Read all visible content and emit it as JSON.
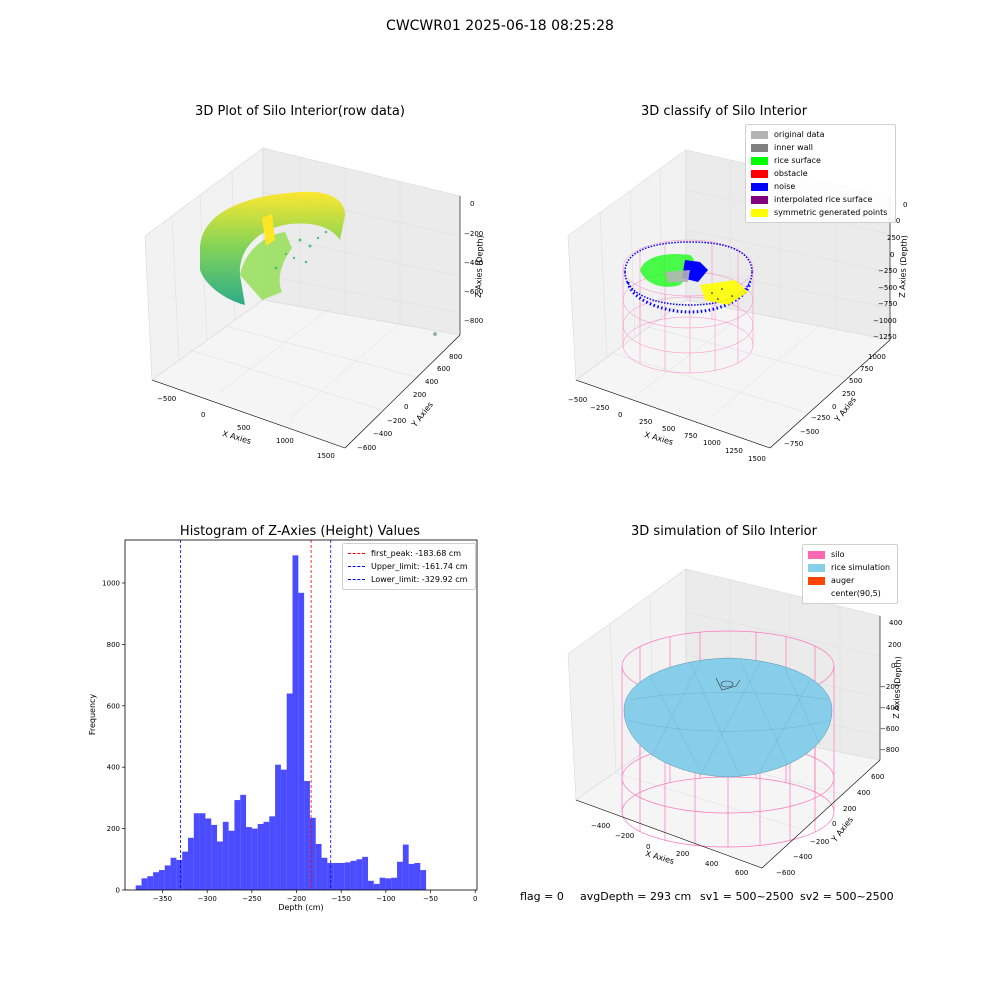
{
  "figure": {
    "suptitle": "CWCWR01 2025-06-18 08:25:28",
    "footer": {
      "flag": "flag = 0",
      "avg": "avgDepth = 293 cm",
      "sv1": "sv1 = 500~2500",
      "sv2": "sv2 = 500~2500"
    }
  },
  "panels": {
    "raw": {
      "title": "3D Plot of Silo Interior(row data)",
      "xlabel": "X Axies",
      "ylabel": "Y Axies",
      "zlabel": "Z Axies (Depth)",
      "xticks": [
        "−500",
        "0",
        "500",
        "1000",
        "1500"
      ],
      "yticks": [
        "−600",
        "−400",
        "−200",
        "0",
        "200",
        "400",
        "600",
        "800"
      ],
      "zticks": [
        "0",
        "−200",
        "−400",
        "−600",
        "−800"
      ],
      "colormap": [
        "#fde725",
        "#5ec962",
        "#21918c"
      ]
    },
    "classify": {
      "title": "3D classify of Silo Interior",
      "xlabel": "X Axies",
      "ylabel": "Y Axies",
      "zlabel": "Z Axies (Depth)",
      "xticks": [
        "−500",
        "−250",
        "0",
        "250",
        "500",
        "750",
        "1000",
        "1250",
        "1500"
      ],
      "yticks": [
        "−750",
        "−500",
        "−250",
        "0",
        "250",
        "500",
        "750",
        "1000"
      ],
      "zticks": [
        "500",
        "250",
        "0",
        "−250",
        "−500",
        "−750",
        "−1000",
        "−1250"
      ],
      "ztick_partial": "0",
      "legend": [
        {
          "label": "original data",
          "color": "#b4b4b4"
        },
        {
          "label": "inner wall",
          "color": "#808080"
        },
        {
          "label": "rice surface",
          "color": "#00ff00"
        },
        {
          "label": "obstacle",
          "color": "#ff0000"
        },
        {
          "label": "noise",
          "color": "#0000ff"
        },
        {
          "label": "interpolated rice surface",
          "color": "#800080"
        },
        {
          "label": "symmetric generated points",
          "color": "#ffff00"
        }
      ]
    },
    "simulation": {
      "title": "3D simulation of Silo Interior",
      "xlabel": "X Axies",
      "ylabel": "Y Axies",
      "zlabel": "Z Axies (Depth)",
      "xticks": [
        "−400",
        "−200",
        "0",
        "200",
        "400",
        "600"
      ],
      "yticks": [
        "−600",
        "−400",
        "−200",
        "0",
        "200",
        "400",
        "600"
      ],
      "zticks": [
        "400",
        "200",
        "0",
        "−200",
        "−400",
        "−600",
        "−800"
      ],
      "legend": [
        {
          "label": "silo",
          "color": "#ff69b4"
        },
        {
          "label": "rice simulation",
          "color": "#87ceeb"
        },
        {
          "label": "auger",
          "color": "#ff4500"
        },
        {
          "label": "center(90,5)",
          "color": ""
        }
      ]
    }
  },
  "chart_data": [
    {
      "type": "scatter",
      "title": "3D Plot of Silo Interior(row data)",
      "xlabel": "X Axies",
      "ylabel": "Y Axies",
      "zlabel": "Z Axies (Depth)",
      "xlim": [
        -600,
        1600
      ],
      "ylim": [
        -650,
        900
      ],
      "zlim": [
        -900,
        0
      ]
    },
    {
      "type": "scatter",
      "title": "3D classify of Silo Interior",
      "xlabel": "X Axies",
      "ylabel": "Y Axies",
      "zlabel": "Z Axies (Depth)",
      "xlim": [
        -550,
        1550
      ],
      "ylim": [
        -850,
        1050
      ],
      "zlim": [
        -1300,
        500
      ],
      "series": [
        {
          "name": "original data"
        },
        {
          "name": "inner wall"
        },
        {
          "name": "rice surface"
        },
        {
          "name": "obstacle"
        },
        {
          "name": "noise"
        },
        {
          "name": "interpolated rice surface"
        },
        {
          "name": "symmetric generated points"
        }
      ]
    },
    {
      "type": "bar",
      "title": "Histogram of Z-Axies (Height) Values",
      "xlabel": "Depth (cm)",
      "ylabel": "Frequency",
      "xlim": [
        -392,
        2
      ],
      "ylim": [
        0,
        1140
      ],
      "xticks": [
        -350,
        -300,
        -250,
        -200,
        -150,
        -100,
        -50,
        0
      ],
      "yticks": [
        0,
        200,
        400,
        600,
        800,
        1000
      ],
      "bin_width": 6.5,
      "bin_start": -380,
      "values": [
        15,
        38,
        45,
        58,
        65,
        80,
        105,
        98,
        125,
        170,
        250,
        250,
        233,
        212,
        158,
        222,
        193,
        293,
        310,
        205,
        200,
        215,
        222,
        240,
        408,
        392,
        640,
        1090,
        968,
        355,
        235,
        150,
        105,
        88,
        88,
        88,
        90,
        95,
        100,
        108,
        30,
        20,
        40,
        38,
        40,
        92,
        148,
        85,
        88,
        65
      ],
      "color": "#0000ff",
      "lines": [
        {
          "name": "first_peak: -183.68 cm",
          "x": -183.68,
          "color": "#ff0000"
        },
        {
          "name": "Upper_limit: -161.74 cm",
          "x": -161.74,
          "color": "#0000ff"
        },
        {
          "name": "Lower_limit: -329.92 cm",
          "x": -329.92,
          "color": "#0000ff"
        }
      ]
    },
    {
      "type": "area",
      "title": "3D simulation of Silo Interior",
      "xlabel": "X Axies",
      "ylabel": "Y Axies",
      "zlabel": "Z Axies (Depth)",
      "xlim": [
        -500,
        700
      ],
      "ylim": [
        -700,
        700
      ],
      "zlim": [
        -900,
        450
      ],
      "series": [
        {
          "name": "silo"
        },
        {
          "name": "rice simulation"
        },
        {
          "name": "auger"
        },
        {
          "name": "center(90,5)"
        }
      ]
    }
  ]
}
